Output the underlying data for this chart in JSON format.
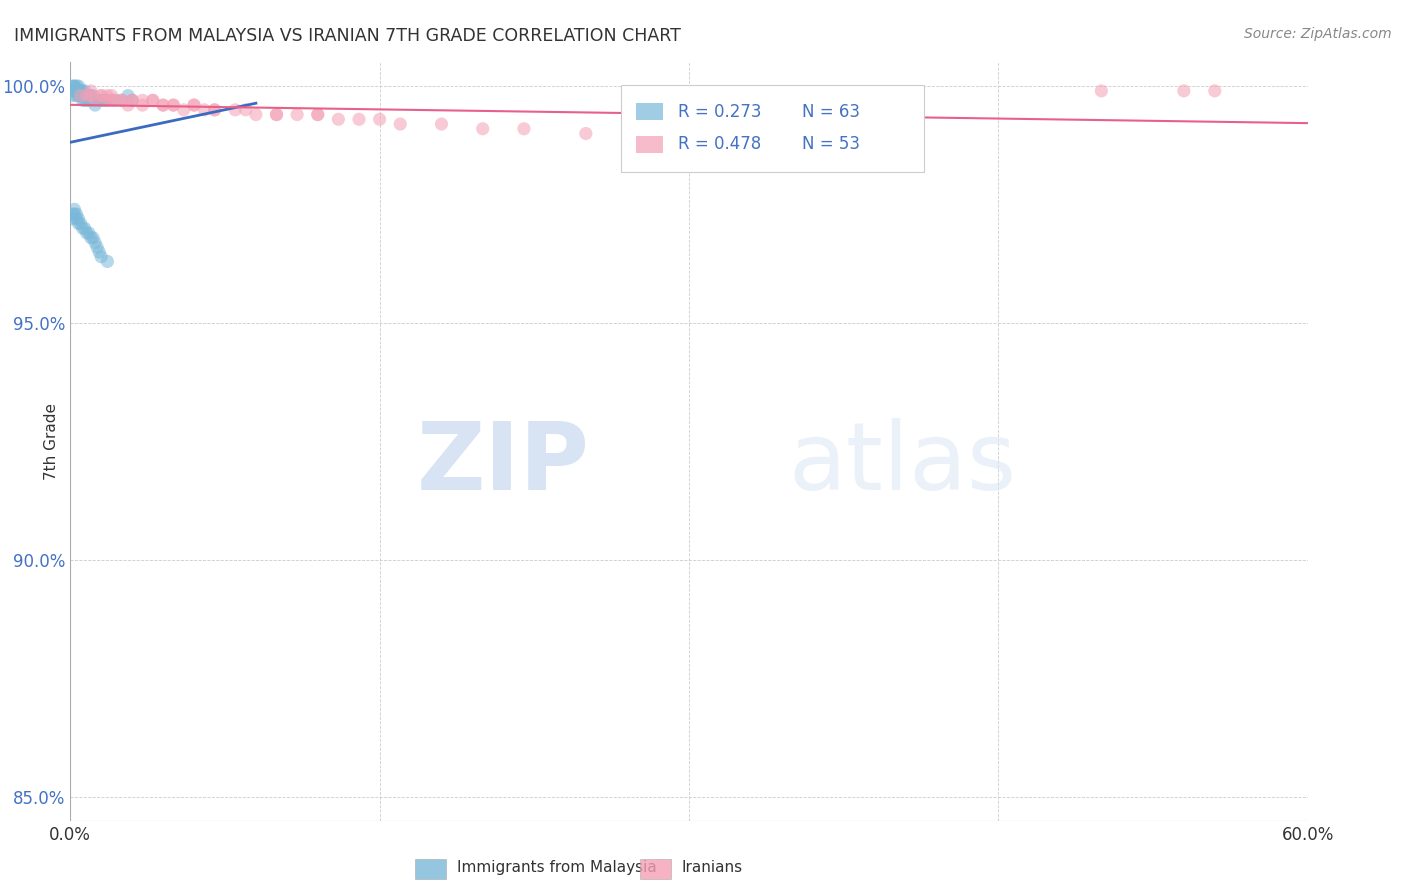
{
  "title": "IMMIGRANTS FROM MALAYSIA VS IRANIAN 7TH GRADE CORRELATION CHART",
  "source": "Source: ZipAtlas.com",
  "ylabel_label": "7th Grade",
  "legend_label1": "Immigrants from Malaysia",
  "legend_label2": "Iranians",
  "xlim": [
    0.0,
    0.6
  ],
  "ylim": [
    0.845,
    1.005
  ],
  "xticks": [
    0.0,
    0.15,
    0.3,
    0.45,
    0.6
  ],
  "xtick_labels": [
    "0.0%",
    "",
    "",
    "",
    "60.0%"
  ],
  "ytick_labels": [
    "85.0%",
    "90.0%",
    "95.0%",
    "100.0%"
  ],
  "yticks": [
    0.85,
    0.9,
    0.95,
    1.0
  ],
  "blue_R": 0.273,
  "blue_N": 63,
  "pink_R": 0.478,
  "pink_N": 53,
  "blue_color": "#7ab8d9",
  "pink_color": "#f4a0b5",
  "blue_line_color": "#3a6bbf",
  "pink_line_color": "#e8608a",
  "blue_scatter_x": [
    0.001,
    0.001,
    0.001,
    0.002,
    0.002,
    0.002,
    0.003,
    0.003,
    0.003,
    0.003,
    0.004,
    0.004,
    0.004,
    0.005,
    0.005,
    0.005,
    0.006,
    0.006,
    0.006,
    0.007,
    0.007,
    0.007,
    0.008,
    0.008,
    0.009,
    0.009,
    0.01,
    0.01,
    0.011,
    0.011,
    0.012,
    0.012,
    0.013,
    0.014,
    0.015,
    0.016,
    0.017,
    0.018,
    0.02,
    0.022,
    0.025,
    0.028,
    0.03,
    0.001,
    0.001,
    0.002,
    0.002,
    0.003,
    0.003,
    0.004,
    0.004,
    0.005,
    0.006,
    0.007,
    0.008,
    0.009,
    0.01,
    0.011,
    0.012,
    0.013,
    0.014,
    0.015,
    0.018
  ],
  "blue_scatter_y": [
    0.998,
    0.999,
    1.0,
    0.999,
    1.0,
    1.0,
    0.999,
    1.0,
    0.999,
    0.998,
    0.999,
    0.998,
    1.0,
    0.999,
    0.998,
    0.999,
    0.999,
    0.998,
    0.997,
    0.999,
    0.998,
    0.997,
    0.998,
    0.997,
    0.998,
    0.997,
    0.998,
    0.997,
    0.998,
    0.997,
    0.997,
    0.996,
    0.997,
    0.997,
    0.997,
    0.997,
    0.997,
    0.997,
    0.997,
    0.997,
    0.997,
    0.998,
    0.997,
    0.973,
    0.972,
    0.974,
    0.973,
    0.973,
    0.972,
    0.972,
    0.971,
    0.971,
    0.97,
    0.97,
    0.969,
    0.969,
    0.968,
    0.968,
    0.967,
    0.966,
    0.965,
    0.964,
    0.963
  ],
  "pink_scatter_x": [
    0.005,
    0.008,
    0.01,
    0.012,
    0.015,
    0.018,
    0.02,
    0.022,
    0.025,
    0.028,
    0.03,
    0.035,
    0.04,
    0.045,
    0.05,
    0.055,
    0.06,
    0.065,
    0.07,
    0.08,
    0.09,
    0.1,
    0.11,
    0.12,
    0.13,
    0.14,
    0.15,
    0.16,
    0.18,
    0.2,
    0.22,
    0.25,
    0.3,
    0.35,
    0.4,
    0.01,
    0.015,
    0.018,
    0.02,
    0.025,
    0.03,
    0.035,
    0.04,
    0.045,
    0.05,
    0.06,
    0.07,
    0.085,
    0.1,
    0.12,
    0.5,
    0.54,
    0.555
  ],
  "pink_scatter_y": [
    0.998,
    0.998,
    0.998,
    0.997,
    0.998,
    0.997,
    0.997,
    0.997,
    0.997,
    0.996,
    0.997,
    0.996,
    0.997,
    0.996,
    0.996,
    0.995,
    0.996,
    0.995,
    0.995,
    0.995,
    0.994,
    0.994,
    0.994,
    0.994,
    0.993,
    0.993,
    0.993,
    0.992,
    0.992,
    0.991,
    0.991,
    0.99,
    0.99,
    0.989,
    0.988,
    0.999,
    0.998,
    0.998,
    0.998,
    0.997,
    0.997,
    0.997,
    0.997,
    0.996,
    0.996,
    0.996,
    0.995,
    0.995,
    0.994,
    0.994,
    0.999,
    0.999,
    0.999
  ],
  "watermark_zip": "ZIP",
  "watermark_atlas": "atlas",
  "background_color": "#ffffff",
  "grid_color": "#cccccc",
  "text_color": "#4472c4",
  "legend_text_color": "#4472c4"
}
